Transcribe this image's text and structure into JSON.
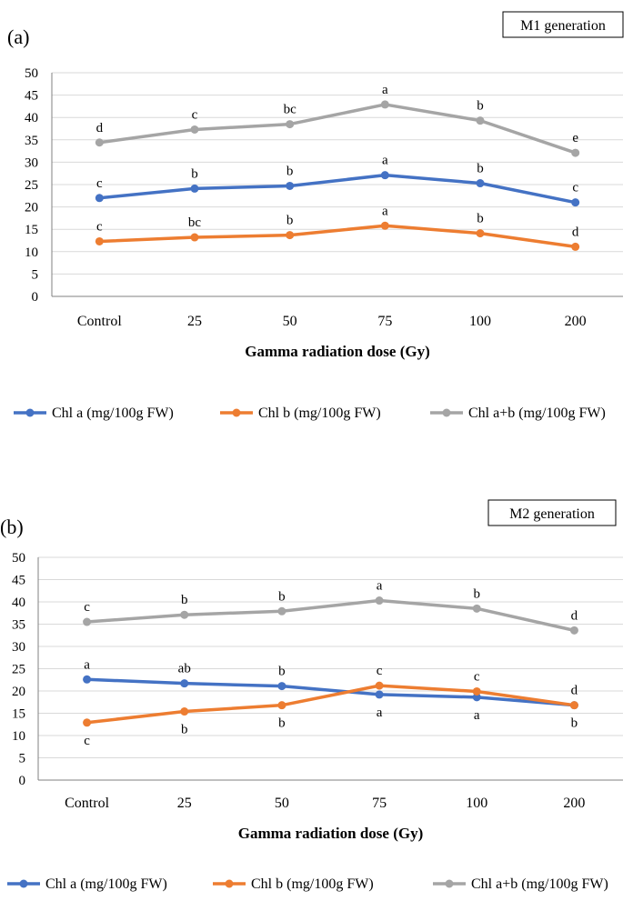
{
  "chart_data": [
    {
      "type": "line",
      "panel_label": "(a)",
      "generation_label": "M1 generation",
      "xlabel": "Gamma radiation dose (Gy)",
      "ylabel": "",
      "ylim": [
        0,
        50
      ],
      "ytick_step": 5,
      "grid": true,
      "legend_position": "bottom",
      "categories": [
        "Control",
        "25",
        "50",
        "75",
        "100",
        "200"
      ],
      "series": [
        {
          "name": "Chl a (mg/100g FW)",
          "color": "#4472C4",
          "values": [
            22.0,
            24.1,
            24.7,
            27.1,
            25.3,
            21.0
          ],
          "letters": [
            "c",
            "b",
            "b",
            "a",
            "b",
            "c"
          ],
          "letter_pos": [
            "above",
            "above",
            "above",
            "above",
            "above",
            "above"
          ]
        },
        {
          "name": "Chl b (mg/100g FW)",
          "color": "#ED7D31",
          "values": [
            12.3,
            13.2,
            13.7,
            15.8,
            14.1,
            11.1
          ],
          "letters": [
            "c",
            "bc",
            "b",
            "a",
            "b",
            "d"
          ],
          "letter_pos": [
            "above",
            "above",
            "above",
            "above",
            "above",
            "above"
          ]
        },
        {
          "name": "Chl a+b (mg/100g FW)",
          "color": "#A5A5A5",
          "values": [
            34.4,
            37.3,
            38.5,
            42.9,
            39.3,
            32.1
          ],
          "letters": [
            "d",
            "c",
            "bc",
            "a",
            "b",
            "e"
          ],
          "letter_pos": [
            "above",
            "above",
            "above",
            "above",
            "above",
            "above"
          ]
        }
      ]
    },
    {
      "type": "line",
      "panel_label": "(b)",
      "generation_label": "M2 generation",
      "xlabel": "Gamma radiation dose (Gy)",
      "ylabel": "",
      "ylim": [
        0,
        50
      ],
      "ytick_step": 5,
      "grid": true,
      "legend_position": "bottom",
      "categories": [
        "Control",
        "25",
        "50",
        "75",
        "100",
        "200"
      ],
      "series": [
        {
          "name": "Chl a (mg/100g FW)",
          "color": "#4472C4",
          "values": [
            22.6,
            21.7,
            21.1,
            19.2,
            18.6,
            16.8
          ],
          "letters": [
            "a",
            "ab",
            "b",
            "a",
            "a",
            "b"
          ],
          "letter_pos": [
            "above",
            "above",
            "above",
            "below",
            "below",
            "below"
          ]
        },
        {
          "name": "Chl b (mg/100g FW)",
          "color": "#ED7D31",
          "values": [
            12.9,
            15.4,
            16.8,
            21.2,
            19.9,
            16.8
          ],
          "letters": [
            "c",
            "b",
            "b",
            "c",
            "c",
            "d"
          ],
          "letter_pos": [
            "below",
            "below",
            "below",
            "above",
            "above",
            "above"
          ]
        },
        {
          "name": "Chl a+b (mg/100g FW)",
          "color": "#A5A5A5",
          "values": [
            35.5,
            37.1,
            37.9,
            40.3,
            38.5,
            33.6
          ],
          "letters": [
            "c",
            "b",
            "b",
            "a",
            "b",
            "d"
          ],
          "letter_pos": [
            "above",
            "above",
            "above",
            "above",
            "above",
            "above"
          ]
        }
      ]
    }
  ]
}
